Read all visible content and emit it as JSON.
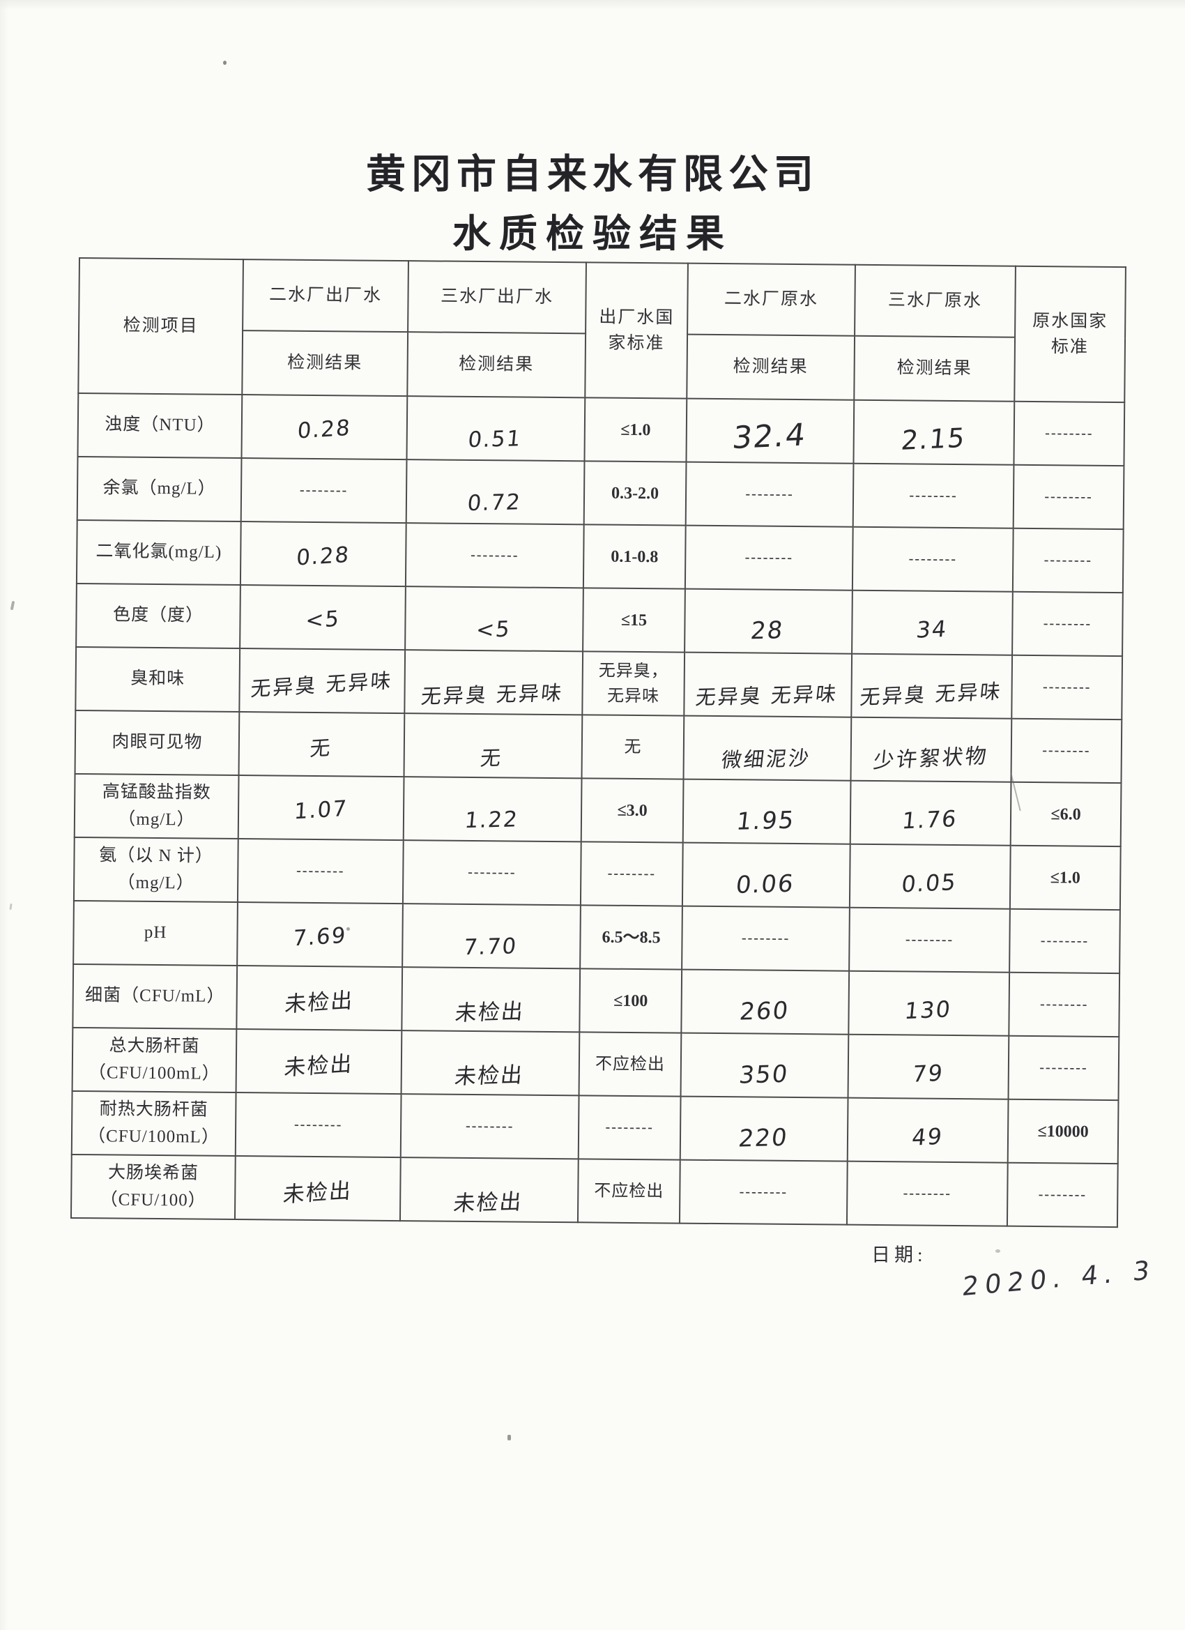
{
  "document": {
    "title": "黄冈市自来水有限公司",
    "subtitle": "水质检验结果",
    "date_label": "日期:",
    "date_value": "2020. 4. 3"
  },
  "table": {
    "item_header": "检测项目",
    "columns": [
      {
        "top": "二水厂出厂水",
        "sub": "检测结果"
      },
      {
        "top": "三水厂出厂水",
        "sub": "检测结果"
      },
      {
        "top": "出厂水国\n家标准"
      },
      {
        "top": "二水厂原水",
        "sub": "检测结果"
      },
      {
        "top": "三水厂原水",
        "sub": "检测结果"
      },
      {
        "top": "原水国家\n标准"
      }
    ],
    "rows": [
      {
        "item": "浊度（NTU）",
        "cells": [
          {
            "text": "0.28",
            "hw": true
          },
          {
            "text": "0.51",
            "hw": true
          },
          {
            "text": "≤1.0"
          },
          {
            "text": "32.4",
            "hw": true
          },
          {
            "text": "2.15",
            "hw": true
          },
          {
            "text": "--------"
          }
        ]
      },
      {
        "item": "余氯（mg/L）",
        "cells": [
          {
            "text": "--------"
          },
          {
            "text": "0.72",
            "hw": true
          },
          {
            "text": "0.3-2.0"
          },
          {
            "text": "--------"
          },
          {
            "text": "--------"
          },
          {
            "text": "--------"
          }
        ]
      },
      {
        "item": "二氧化氯(mg/L)",
        "cells": [
          {
            "text": "0.28",
            "hw": true
          },
          {
            "text": "--------"
          },
          {
            "text": "0.1-0.8"
          },
          {
            "text": "--------"
          },
          {
            "text": "--------"
          },
          {
            "text": "--------"
          }
        ]
      },
      {
        "item": "色度（度）",
        "cells": [
          {
            "text": "<5",
            "hw": true
          },
          {
            "text": "<5",
            "hw": true
          },
          {
            "text": "≤15"
          },
          {
            "text": "28",
            "hw": true
          },
          {
            "text": "34",
            "hw": true
          },
          {
            "text": "--------"
          }
        ]
      },
      {
        "item": "臭和味",
        "cells": [
          {
            "text": "无异臭 无异味",
            "hw": true
          },
          {
            "text": "无异臭 无异味",
            "hw": true
          },
          {
            "text": "无异臭，\n无异味"
          },
          {
            "text": "无异臭 无异味",
            "hw": true
          },
          {
            "text": "无异臭 无异味",
            "hw": true
          },
          {
            "text": "--------"
          }
        ]
      },
      {
        "item": "肉眼可见物",
        "cells": [
          {
            "text": "无",
            "hw": true
          },
          {
            "text": "无",
            "hw": true
          },
          {
            "text": "无"
          },
          {
            "text": "微细泥沙",
            "hw": true
          },
          {
            "text": "少许絮状物",
            "hw": true
          },
          {
            "text": "--------"
          }
        ]
      },
      {
        "item": "高锰酸盐指数\n（mg/L）",
        "cells": [
          {
            "text": "1.07",
            "hw": true
          },
          {
            "text": "1.22",
            "hw": true
          },
          {
            "text": "≤3.0"
          },
          {
            "text": "1.95",
            "hw": true
          },
          {
            "text": "1.76",
            "hw": true
          },
          {
            "text": "≤6.0"
          }
        ]
      },
      {
        "item": "氨（以 N 计）\n（mg/L）",
        "cells": [
          {
            "text": "--------"
          },
          {
            "text": "--------"
          },
          {
            "text": "--------"
          },
          {
            "text": "0.06",
            "hw": true
          },
          {
            "text": "0.05",
            "hw": true
          },
          {
            "text": "≤1.0"
          }
        ]
      },
      {
        "item": "pH",
        "cells": [
          {
            "text": "7.69",
            "hw": true
          },
          {
            "text": "7.70",
            "hw": true
          },
          {
            "text": "6.5～8.5"
          },
          {
            "text": "--------"
          },
          {
            "text": "--------"
          },
          {
            "text": "--------"
          }
        ]
      },
      {
        "item": "细菌（CFU/mL）",
        "cells": [
          {
            "text": "未检出",
            "hw": true
          },
          {
            "text": "未检出",
            "hw": true
          },
          {
            "text": "≤100"
          },
          {
            "text": "260",
            "hw": true
          },
          {
            "text": "130",
            "hw": true
          },
          {
            "text": "--------"
          }
        ]
      },
      {
        "item": "总大肠杆菌\n（CFU/100mL）",
        "cells": [
          {
            "text": "未检出",
            "hw": true
          },
          {
            "text": "未检出",
            "hw": true
          },
          {
            "text": "不应检出"
          },
          {
            "text": "350",
            "hw": true
          },
          {
            "text": "79",
            "hw": true
          },
          {
            "text": "--------"
          }
        ]
      },
      {
        "item": "耐热大肠杆菌\n（CFU/100mL）",
        "cells": [
          {
            "text": "--------"
          },
          {
            "text": "--------"
          },
          {
            "text": "--------"
          },
          {
            "text": "220",
            "hw": true
          },
          {
            "text": "49",
            "hw": true
          },
          {
            "text": "≤10000"
          }
        ]
      },
      {
        "item": "大肠埃希菌\n（CFU/100）",
        "cells": [
          {
            "text": "未检出",
            "hw": true
          },
          {
            "text": "未检出",
            "hw": true
          },
          {
            "text": "不应检出"
          },
          {
            "text": "--------"
          },
          {
            "text": "--------"
          },
          {
            "text": "--------"
          }
        ]
      }
    ]
  }
}
